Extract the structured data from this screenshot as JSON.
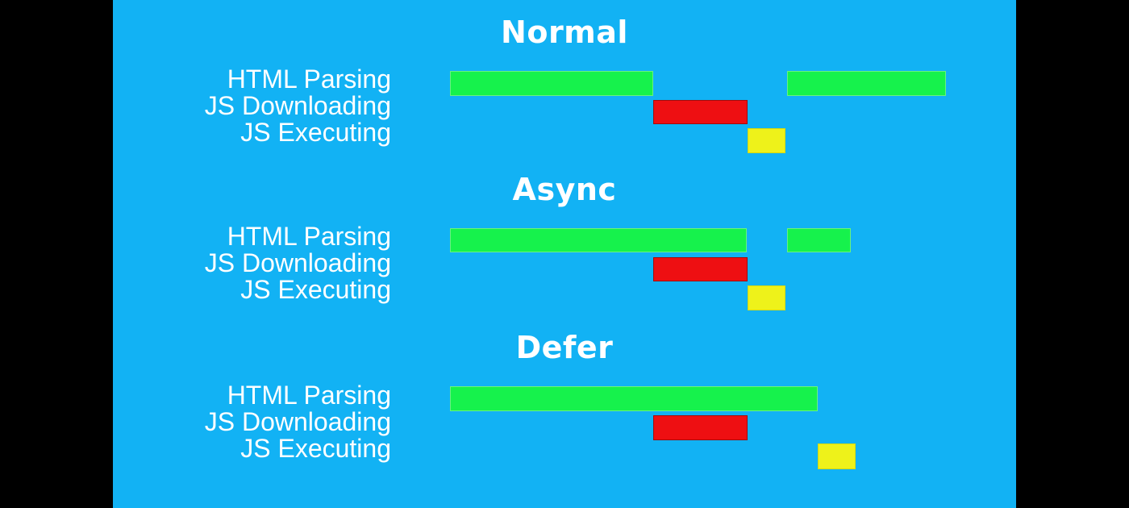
{
  "colors": {
    "background": "#12b2f4",
    "letterbox": "#000000",
    "text": "#ffffff",
    "html_parsing": "#16f24c",
    "js_downloading": "#ee0f12",
    "js_executing": "#eef21a"
  },
  "row_labels": {
    "html_parsing": "HTML Parsing",
    "js_downloading": "JS Downloading",
    "js_executing": "JS Executing"
  },
  "sections": [
    {
      "title": "Normal"
    },
    {
      "title": "Async"
    },
    {
      "title": "Defer"
    }
  ]
}
